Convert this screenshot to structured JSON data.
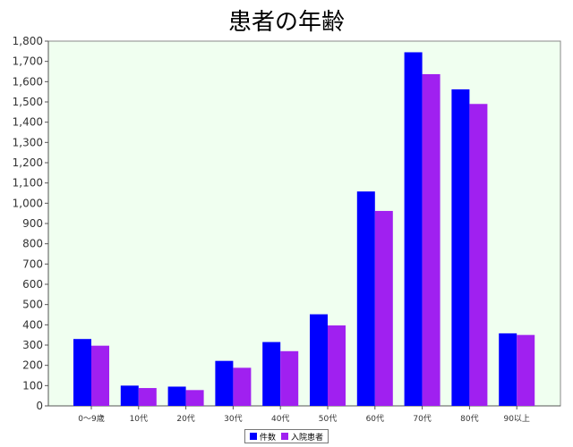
{
  "chart_data": {
    "type": "bar",
    "title": "患者の年齢",
    "xlabel": "",
    "ylabel": "",
    "categories": [
      "0〜9歳",
      "10代",
      "20代",
      "30代",
      "40代",
      "50代",
      "60代",
      "70代",
      "80代",
      "90以上"
    ],
    "series": [
      {
        "name": "件数",
        "color": "#0000ff",
        "values": [
          330,
          100,
          95,
          222,
          315,
          452,
          1058,
          1745,
          1562,
          358
        ]
      },
      {
        "name": "入院患者",
        "color": "#a020f0",
        "values": [
          297,
          88,
          78,
          188,
          270,
          397,
          962,
          1637,
          1490,
          350
        ]
      }
    ],
    "ylim": [
      0,
      1800
    ],
    "yticks": [
      0,
      100,
      200,
      300,
      400,
      500,
      600,
      700,
      800,
      900,
      1000,
      1100,
      1200,
      1300,
      1400,
      1500,
      1600,
      1700,
      1800
    ],
    "grid": false,
    "legend": "bottom",
    "plot_background": "#f0fff0"
  }
}
